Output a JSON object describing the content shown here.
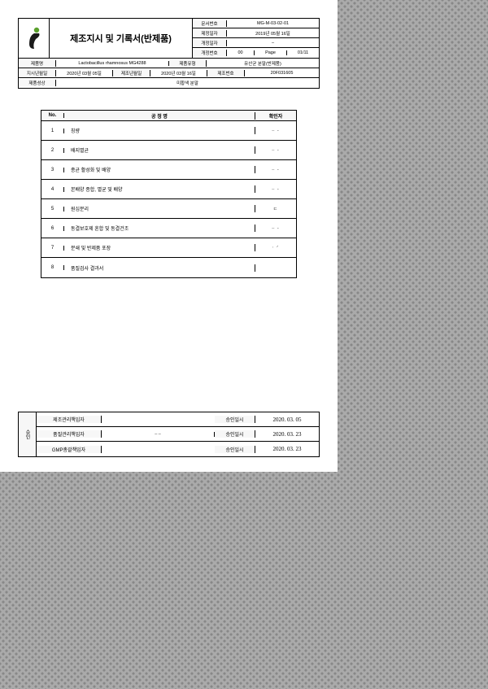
{
  "header": {
    "title": "제조지시 및 기록서(반제품)",
    "meta": {
      "doc_no_label": "문서번호",
      "doc_no": "MG-M-03-02-01",
      "est_date_label": "제정일자",
      "est_date": "2019년 05월 16일",
      "rev_date_label": "개정일자",
      "rev_date": "–",
      "rev_no_label": "개정번호",
      "rev_no": "00",
      "page_label": "Page",
      "page_val": "01/11"
    }
  },
  "info": {
    "prod_name_label": "제품명",
    "prod_name": "Lactobacillus rhamnosus MG4288",
    "prod_type_label": "제품유형",
    "prod_type": "유산균 분말(반제품)",
    "inst_date_label": "지시년월일",
    "inst_date": "2020년 03월 05일",
    "mfg_date_label": "제조년월일",
    "mfg_date": "2020년 03월 16일",
    "lot_no_label": "제조번호",
    "lot_no": "20F031605",
    "prop_label": "제품성상",
    "prop_val": "미황색 분말"
  },
  "process": {
    "head": {
      "no": "No.",
      "name": "공 정 명",
      "conf": "확인자"
    },
    "rows": [
      {
        "no": "1",
        "name": "칭량",
        "sig": "‒  ‐"
      },
      {
        "no": "2",
        "name": "배지멸균",
        "sig": "‒  ‐"
      },
      {
        "no": "3",
        "name": "종균 활성화 및 배양",
        "sig": "‒  ‐"
      },
      {
        "no": "4",
        "name": "본배양 종합, 멸균 및 배양",
        "sig": "‒  ‐"
      },
      {
        "no": "5",
        "name": "원심분리",
        "sig": "ㄷ   "
      },
      {
        "no": "6",
        "name": "동결보호제 혼합 및 동결건조",
        "sig": "‒  ‐"
      },
      {
        "no": "7",
        "name": "분쇄 및 반제품 포장",
        "sig": "‧  ᐟ"
      },
      {
        "no": "8",
        "name": "품질검사 결과서",
        "sig": ""
      }
    ]
  },
  "approval": {
    "side": "승인",
    "rows": [
      {
        "role": "제조관리책임자",
        "sig": "",
        "lab": "승인일시",
        "date": "2020. 03. 05"
      },
      {
        "role": "품질관리책임자",
        "sig": "‒   ‒",
        "lab": "승인일시",
        "date": "2020. 03. 23"
      },
      {
        "role": "GMP총괄책임자",
        "sig": "",
        "lab": "승인일시",
        "date": "2020. 03. 23"
      }
    ]
  }
}
